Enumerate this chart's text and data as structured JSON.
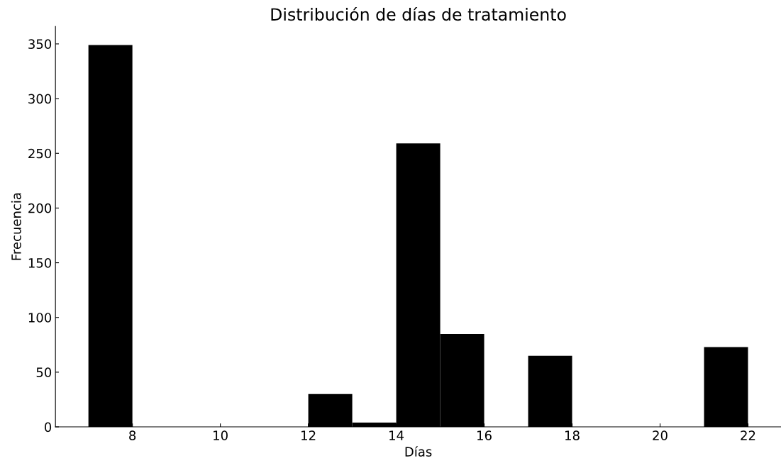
{
  "chart_data": {
    "type": "histogram",
    "title": "Distribución de días de tratamiento",
    "xlabel": "Días",
    "ylabel": "Frecuencia",
    "bins": [
      7,
      8,
      9,
      10,
      11,
      12,
      13,
      14,
      15,
      16,
      17,
      18,
      19,
      20,
      21,
      22
    ],
    "values": [
      349,
      0,
      0,
      0,
      0,
      30,
      4,
      259,
      85,
      0,
      65,
      0,
      0,
      0,
      73
    ],
    "color": "#000000",
    "xlim": [
      6.25,
      22.75
    ],
    "ylim": [
      0,
      366
    ],
    "xticks": [
      8,
      10,
      12,
      14,
      16,
      18,
      20,
      22
    ],
    "yticks": [
      0,
      50,
      100,
      150,
      200,
      250,
      300,
      350
    ],
    "grid": false
  }
}
